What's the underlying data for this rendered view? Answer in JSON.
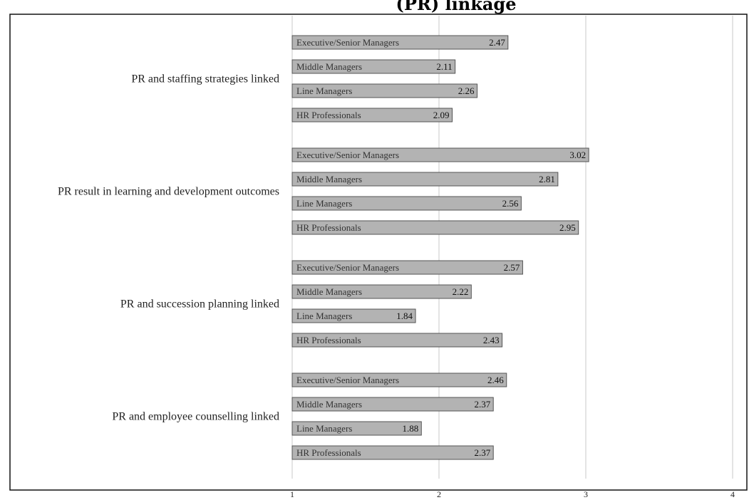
{
  "chart_data": {
    "type": "bar",
    "orientation": "horizontal",
    "title": "(PR) linkage",
    "xlim": [
      1,
      4
    ],
    "x_ticks": [
      "1",
      "2",
      "3",
      "4"
    ],
    "grid": true,
    "colors": {
      "bar": "#b3b3b3",
      "bar_edge": "#555555",
      "grid": "#c8c8c8"
    },
    "groups": [
      {
        "name": "PR and staffing strategies linked",
        "bars": [
          {
            "label": "Executive/Senior Managers",
            "value": 2.47,
            "value_label": "2.47"
          },
          {
            "label": "Middle Managers",
            "value": 2.11,
            "value_label": "2.11"
          },
          {
            "label": "Line Managers",
            "value": 2.26,
            "value_label": "2.26"
          },
          {
            "label": "HR Professionals",
            "value": 2.09,
            "value_label": "2.09"
          }
        ]
      },
      {
        "name": "PR result in learning and development outcomes",
        "bars": [
          {
            "label": "Executive/Senior Managers",
            "value": 3.02,
            "value_label": "3.02"
          },
          {
            "label": "Middle Managers",
            "value": 2.81,
            "value_label": "2.81"
          },
          {
            "label": "Line Managers",
            "value": 2.56,
            "value_label": "2.56"
          },
          {
            "label": "HR Professionals",
            "value": 2.95,
            "value_label": "2.95"
          }
        ]
      },
      {
        "name": "PR and succession planning linked",
        "bars": [
          {
            "label": "Executive/Senior Managers",
            "value": 2.57,
            "value_label": "2.57"
          },
          {
            "label": "Middle Managers",
            "value": 2.22,
            "value_label": "2.22"
          },
          {
            "label": "Line Managers",
            "value": 1.84,
            "value_label": "1.84"
          },
          {
            "label": "HR Professionals",
            "value": 2.43,
            "value_label": "2.43"
          }
        ]
      },
      {
        "name": "PR and employee counselling linked",
        "bars": [
          {
            "label": "Executive/Senior Managers",
            "value": 2.46,
            "value_label": "2.46"
          },
          {
            "label": "Middle Managers",
            "value": 2.37,
            "value_label": "2.37"
          },
          {
            "label": "Line Managers",
            "value": 1.88,
            "value_label": "1.88"
          },
          {
            "label": "HR Professionals",
            "value": 2.37,
            "value_label": "2.37"
          }
        ]
      }
    ]
  }
}
